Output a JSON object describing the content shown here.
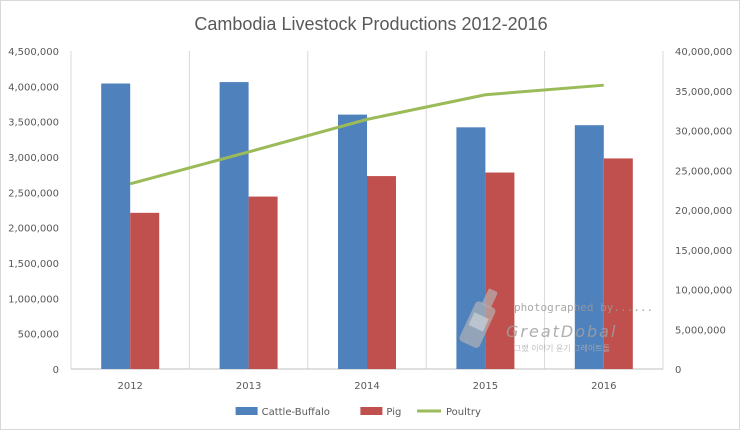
{
  "chart_data": {
    "type": "bar",
    "title": "Cambodia Livestock Productions 2012-2016",
    "categories": [
      "2012",
      "2013",
      "2014",
      "2015",
      "2016"
    ],
    "series": [
      {
        "name": "Cattle-Buffalo",
        "type": "bar",
        "axis": "left",
        "color": "#4f81bd",
        "values": [
          4040000,
          4060000,
          3600000,
          3420000,
          3450000
        ]
      },
      {
        "name": "Pig",
        "type": "bar",
        "axis": "left",
        "color": "#c0504d",
        "values": [
          2210000,
          2440000,
          2730000,
          2780000,
          2980000
        ]
      },
      {
        "name": "Poultry",
        "type": "line",
        "axis": "right",
        "color": "#9bbb59",
        "values": [
          23300000,
          27300000,
          31400000,
          34500000,
          35700000
        ]
      }
    ],
    "y_left": {
      "min": 0,
      "max": 4500000,
      "ticks": [
        "0",
        "500,000",
        "1,000,000",
        "1,500,000",
        "2,000,000",
        "2,500,000",
        "3,000,000",
        "3,500,000",
        "4,000,000",
        "4,500,000"
      ]
    },
    "y_right": {
      "min": 0,
      "max": 40000000,
      "ticks": [
        "0",
        "5,000,000",
        "10,000,000",
        "15,000,000",
        "20,000,000",
        "25,000,000",
        "30,000,000",
        "35,000,000",
        "40,000,000"
      ]
    },
    "grid": "vertical-category-lines",
    "legend": "bottom-center",
    "xlabel": "",
    "ylabel": ""
  },
  "watermark": {
    "line1": "photographed by......",
    "line2": "GreatDobal",
    "line3": "그랬 이야기 윤기 그레이트돌"
  }
}
